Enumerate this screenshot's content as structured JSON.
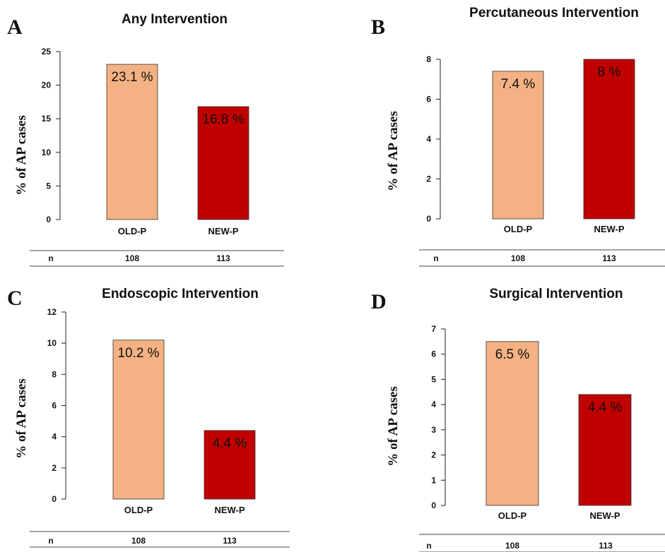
{
  "n_row_label": "n",
  "chart_data": [
    {
      "letter": "A",
      "type": "bar",
      "title": "Any Intervention",
      "ylabel": "% of AP cases",
      "categories": [
        "OLD-P",
        "NEW-P"
      ],
      "values": [
        23.1,
        16.8
      ],
      "data_labels": [
        "23.1 %",
        "16.8 %"
      ],
      "ylim": [
        0,
        25
      ],
      "yticks": [
        0,
        5,
        10,
        15,
        20,
        25
      ],
      "n_values": [
        "108",
        "113"
      ],
      "bar_colors": [
        "#f4b183",
        "#c00000"
      ]
    },
    {
      "letter": "B",
      "type": "bar",
      "title": "Percutaneous Intervention",
      "ylabel": "% of AP cases",
      "categories": [
        "OLD-P",
        "NEW-P"
      ],
      "values": [
        7.4,
        8.0
      ],
      "data_labels": [
        "7.4 %",
        "8 %"
      ],
      "ylim": [
        0,
        8
      ],
      "yticks": [
        0,
        2,
        4,
        6,
        8
      ],
      "n_values": [
        "108",
        "113"
      ],
      "bar_colors": [
        "#f4b183",
        "#c00000"
      ]
    },
    {
      "letter": "C",
      "type": "bar",
      "title": "Endoscopic Intervention",
      "ylabel": "% of AP cases",
      "categories": [
        "OLD-P",
        "NEW-P"
      ],
      "values": [
        10.2,
        4.4
      ],
      "data_labels": [
        "10.2 %",
        "4.4 %"
      ],
      "ylim": [
        0,
        12
      ],
      "yticks": [
        0,
        2,
        4,
        6,
        8,
        10,
        12
      ],
      "n_values": [
        "108",
        "113"
      ],
      "bar_colors": [
        "#f4b183",
        "#c00000"
      ]
    },
    {
      "letter": "D",
      "type": "bar",
      "title": "Surgical Intervention",
      "ylabel": "% of AP cases",
      "categories": [
        "OLD-P",
        "NEW-P"
      ],
      "values": [
        6.5,
        4.4
      ],
      "data_labels": [
        "6.5 %",
        "4.4 %"
      ],
      "ylim": [
        0,
        7
      ],
      "yticks": [
        0,
        1,
        2,
        3,
        4,
        5,
        6,
        7
      ],
      "n_values": [
        "108",
        "113"
      ],
      "bar_colors": [
        "#f4b183",
        "#c00000"
      ]
    }
  ]
}
